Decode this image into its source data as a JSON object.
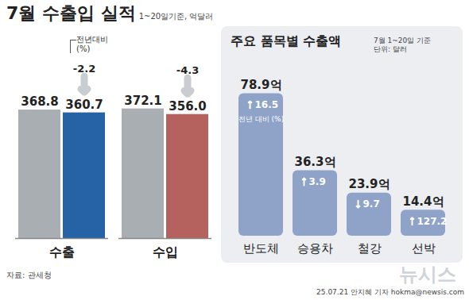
{
  "header": {
    "title": "7월 수출입 실적",
    "subtitle": "1~20일기준, 억달러"
  },
  "chart_data": [
    {
      "type": "bar",
      "categories": [
        "수출",
        "수입"
      ],
      "series": [
        {
          "color": "#a9aeb2",
          "values": [
            368.8,
            372.1
          ]
        },
        {
          "colors": [
            "#2662a6",
            "#b5625e"
          ],
          "values": [
            360.7,
            356.0
          ],
          "value_labels": [
            "360.7",
            "356.0"
          ],
          "changes": [
            -2.2,
            -4.3
          ]
        }
      ],
      "change_note": "전년대비 (%)",
      "ylim": [
        0,
        410
      ],
      "tick_labels": false,
      "data_labels": true
    },
    {
      "type": "bar",
      "title": "주요 품목별 수출액",
      "subtitle": "7월 1~20일 기준",
      "unit_note": "단위: 달러",
      "categories": [
        "반도체",
        "승용차",
        "철강",
        "선박"
      ],
      "values": [
        78.9,
        36.3,
        23.9,
        14.4
      ],
      "value_labels": [
        "78.9억",
        "36.3억",
        "23.9억",
        "14.4억"
      ],
      "color": "#8fa2c8",
      "changes": [
        16.5,
        3.9,
        -9.7,
        127.2
      ],
      "change_labels": [
        "16.5",
        "3.9",
        "9.7",
        "127.2"
      ],
      "change_note": "전년 대비 (%)",
      "ylim": [
        0,
        80
      ],
      "tick_labels": false,
      "data_labels": true
    }
  ],
  "footer": {
    "source": "자료: 관세청",
    "credit": "25.07.21 안지혜 기자 hokma@newsis.com",
    "watermark": "뉴시스"
  }
}
